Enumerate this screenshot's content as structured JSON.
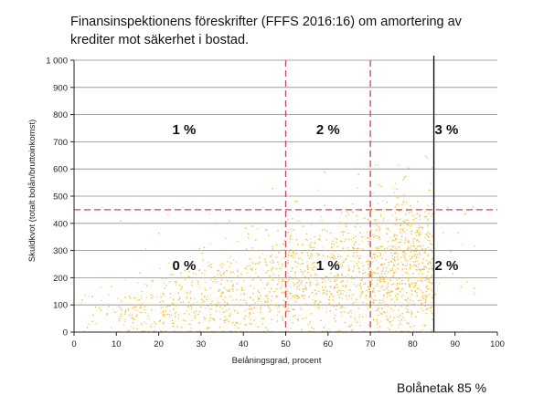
{
  "title_line1": "Finansinspektionens föreskrifter (FFFS 2016:16) om amortering av",
  "title_line2": "krediter mot säkerhet i bostad.",
  "cap_label": "Bolånetak 85 %",
  "chart_data": {
    "type": "scatter",
    "xlabel": "Belåningsgrad, procent",
    "ylabel": "Skuldkvot (totalt bolån/bruttoinkomst)",
    "xlim": [
      0,
      100
    ],
    "ylim": [
      0,
      1000
    ],
    "x_ticks": [
      0,
      10,
      20,
      30,
      40,
      50,
      60,
      70,
      80,
      90,
      100
    ],
    "y_ticks": [
      0,
      100,
      200,
      300,
      400,
      500,
      600,
      700,
      800,
      900,
      1000
    ],
    "y_tick_labels": [
      "0",
      "100",
      "200",
      "300",
      "400",
      "500",
      "600",
      "700",
      "800",
      "900",
      "1 000"
    ],
    "grid": "horizontal",
    "point_color": "#f5c242",
    "dashed_line_color": "#c9485b",
    "solid_line_color": "#000000",
    "dashed_vertical_lines_x": [
      50,
      70
    ],
    "dashed_horizontal_line_y": 450,
    "solid_vertical_line_x": 85,
    "zone_labels": [
      {
        "text": "1 %",
        "x": 26,
        "y": 745
      },
      {
        "text": "2 %",
        "x": 60,
        "y": 745
      },
      {
        "text": "3 %",
        "x": 88,
        "y": 745
      },
      {
        "text": "0 %",
        "x": 26,
        "y": 245
      },
      {
        "text": "1 %",
        "x": 60,
        "y": 245
      },
      {
        "text": "2 %",
        "x": 88,
        "y": 245
      }
    ]
  }
}
